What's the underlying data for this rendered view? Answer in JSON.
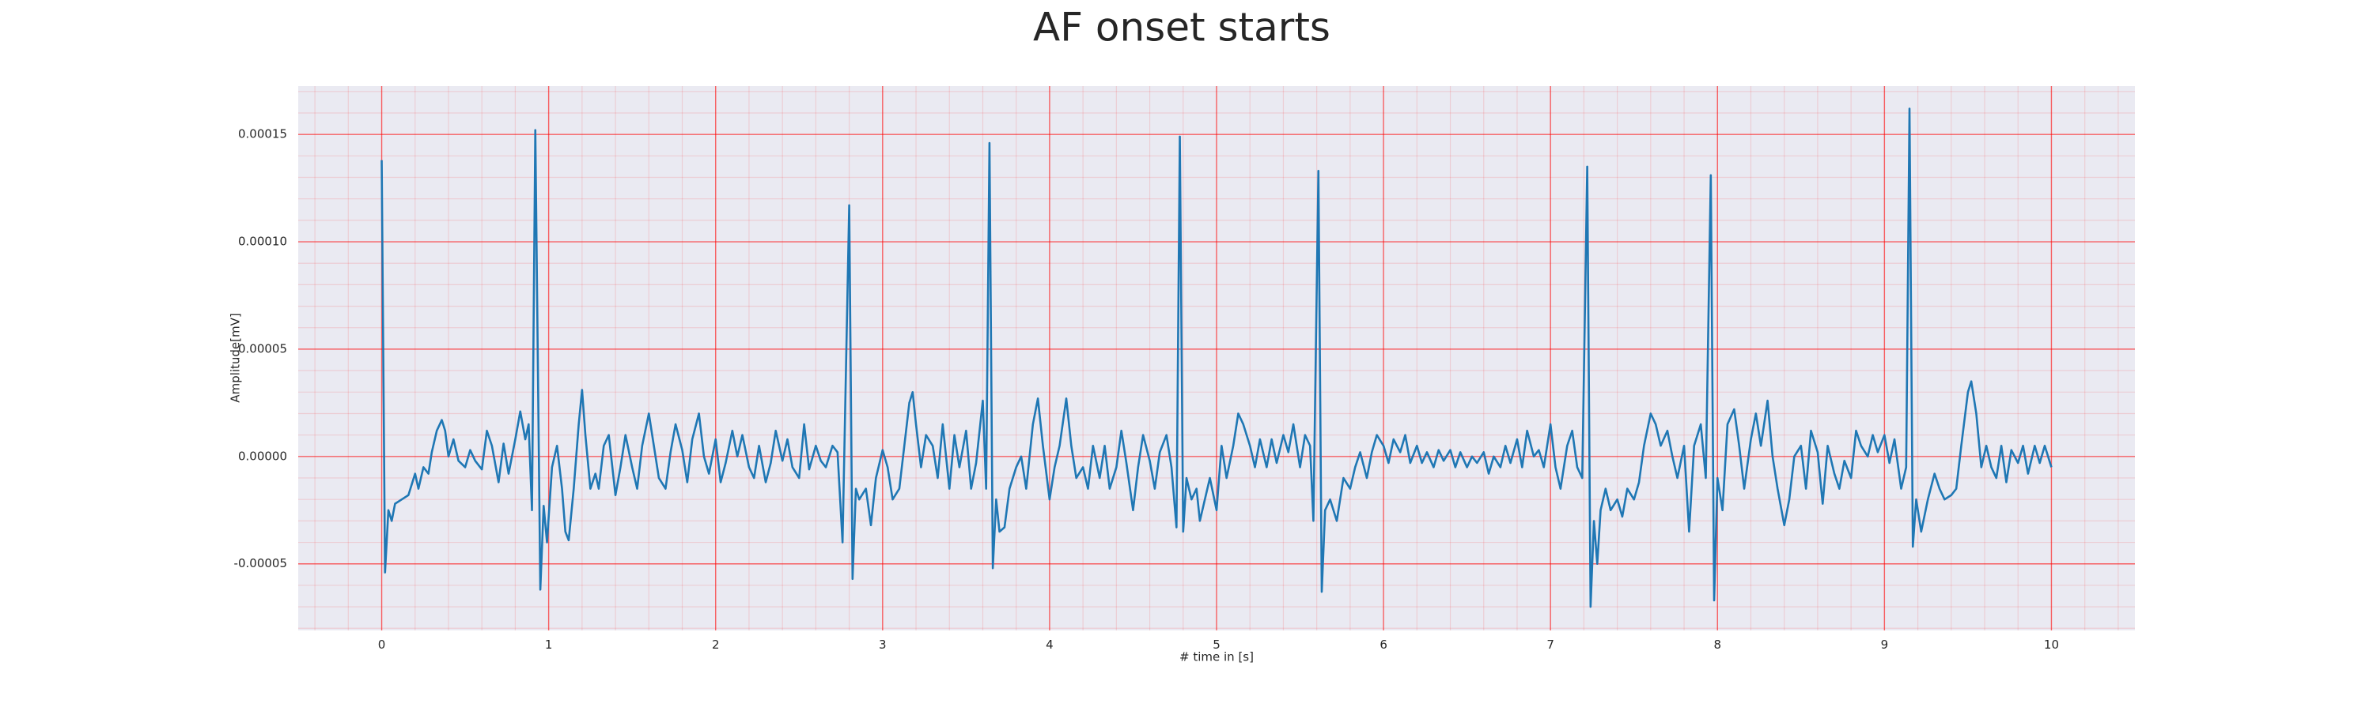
{
  "chart_data": {
    "type": "line",
    "title": "AF onset starts",
    "x_label": "# time in [s]",
    "y_label": "Amplitude[mV]",
    "color": "#1f77b4",
    "grid": true,
    "minor_grid": true,
    "grid_color": "#ff0000",
    "xlim": [
      -0.5,
      10.5
    ],
    "ylim": [
      -8.1e-05,
      0.0001725
    ],
    "xticks": [
      0,
      1,
      2,
      3,
      4,
      5,
      6,
      7,
      8,
      9,
      10
    ],
    "yticks": [
      -5e-05,
      {
        "value": 0,
        "label": "0.00000"
      },
      5e-05,
      {
        "value": 0.0001,
        "label": "0.00010"
      },
      0.00015
    ],
    "x": [
      0,
      0.02,
      0.04,
      0.06,
      0.08,
      0.12,
      0.16,
      0.2,
      0.22,
      0.25,
      0.28,
      0.3,
      0.33,
      0.36,
      0.38,
      0.4,
      0.43,
      0.46,
      0.5,
      0.53,
      0.56,
      0.6,
      0.63,
      0.66,
      0.7,
      0.73,
      0.76,
      0.8,
      0.83,
      0.86,
      0.88,
      0.9,
      0.92,
      0.95,
      0.97,
      0.99,
      1.02,
      1.05,
      1.08,
      1.1,
      1.12,
      1.15,
      1.18,
      1.2,
      1.22,
      1.25,
      1.28,
      1.3,
      1.33,
      1.36,
      1.4,
      1.43,
      1.46,
      1.5,
      1.53,
      1.56,
      1.6,
      1.63,
      1.66,
      1.7,
      1.73,
      1.76,
      1.8,
      1.83,
      1.86,
      1.9,
      1.93,
      1.96,
      2.0,
      2.03,
      2.06,
      2.1,
      2.13,
      2.16,
      2.2,
      2.23,
      2.26,
      2.3,
      2.33,
      2.36,
      2.4,
      2.43,
      2.46,
      2.5,
      2.53,
      2.56,
      2.6,
      2.63,
      2.66,
      2.7,
      2.73,
      2.76,
      2.8,
      2.82,
      2.84,
      2.86,
      2.9,
      2.93,
      2.96,
      3.0,
      3.03,
      3.06,
      3.1,
      3.13,
      3.16,
      3.18,
      3.2,
      3.23,
      3.26,
      3.3,
      3.33,
      3.36,
      3.4,
      3.43,
      3.46,
      3.5,
      3.53,
      3.56,
      3.6,
      3.62,
      3.64,
      3.66,
      3.68,
      3.7,
      3.73,
      3.76,
      3.8,
      3.83,
      3.86,
      3.9,
      3.93,
      3.96,
      4.0,
      4.03,
      4.06,
      4.1,
      4.13,
      4.16,
      4.2,
      4.23,
      4.26,
      4.3,
      4.33,
      4.36,
      4.4,
      4.43,
      4.46,
      4.5,
      4.53,
      4.56,
      4.6,
      4.63,
      4.66,
      4.7,
      4.73,
      4.76,
      4.78,
      4.8,
      4.82,
      4.85,
      4.88,
      4.9,
      4.93,
      4.96,
      5.0,
      5.03,
      5.06,
      5.1,
      5.13,
      5.16,
      5.2,
      5.23,
      5.26,
      5.3,
      5.33,
      5.36,
      5.4,
      5.43,
      5.46,
      5.5,
      5.53,
      5.56,
      5.58,
      5.61,
      5.63,
      5.65,
      5.68,
      5.72,
      5.76,
      5.8,
      5.83,
      5.86,
      5.9,
      5.93,
      5.96,
      6.0,
      6.03,
      6.06,
      6.1,
      6.13,
      6.16,
      6.2,
      6.23,
      6.26,
      6.3,
      6.33,
      6.36,
      6.4,
      6.43,
      6.46,
      6.5,
      6.53,
      6.56,
      6.6,
      6.63,
      6.66,
      6.7,
      6.73,
      6.76,
      6.8,
      6.83,
      6.86,
      6.9,
      6.93,
      6.96,
      7.0,
      7.03,
      7.06,
      7.1,
      7.13,
      7.16,
      7.19,
      7.22,
      7.24,
      7.26,
      7.28,
      7.3,
      7.33,
      7.36,
      7.4,
      7.43,
      7.46,
      7.5,
      7.53,
      7.56,
      7.6,
      7.63,
      7.66,
      7.7,
      7.73,
      7.76,
      7.8,
      7.83,
      7.86,
      7.9,
      7.93,
      7.96,
      7.98,
      8.0,
      8.03,
      8.06,
      8.1,
      8.13,
      8.16,
      8.2,
      8.23,
      8.26,
      8.3,
      8.33,
      8.36,
      8.4,
      8.43,
      8.46,
      8.5,
      8.53,
      8.56,
      8.6,
      8.63,
      8.66,
      8.7,
      8.73,
      8.76,
      8.8,
      8.83,
      8.86,
      8.9,
      8.93,
      8.96,
      9.0,
      9.03,
      9.06,
      9.1,
      9.13,
      9.15,
      9.17,
      9.19,
      9.22,
      9.26,
      9.3,
      9.33,
      9.36,
      9.4,
      9.43,
      9.46,
      9.5,
      9.52,
      9.55,
      9.58,
      9.61,
      9.64,
      9.67,
      9.7,
      9.73,
      9.76,
      9.8,
      9.83,
      9.86,
      9.9,
      9.93,
      9.96,
      10.0
    ],
    "values": [
      0.000138,
      -5.4e-05,
      -2.5e-05,
      -3e-05,
      -2.2e-05,
      -2e-05,
      -1.8e-05,
      -8e-06,
      -1.5e-05,
      -5e-06,
      -8e-06,
      2e-06,
      1.2e-05,
      1.7e-05,
      1.2e-05,
      0,
      8e-06,
      -2e-06,
      -5e-06,
      3e-06,
      -2e-06,
      -6e-06,
      1.2e-05,
      5e-06,
      -1.2e-05,
      6e-06,
      -8e-06,
      8e-06,
      2.1e-05,
      8e-06,
      1.5e-05,
      -2.5e-05,
      0.000152,
      -6.2e-05,
      -2.3e-05,
      -4e-05,
      -5e-06,
      5e-06,
      -1.5e-05,
      -3.5e-05,
      -3.9e-05,
      -1.5e-05,
      1.5e-05,
      3.1e-05,
      1e-05,
      -1.5e-05,
      -8e-06,
      -1.5e-05,
      5e-06,
      1e-05,
      -1.8e-05,
      -5e-06,
      1e-05,
      -5e-06,
      -1.5e-05,
      5e-06,
      2e-05,
      5e-06,
      -1e-05,
      -1.5e-05,
      2e-06,
      1.5e-05,
      3e-06,
      -1.2e-05,
      8e-06,
      2e-05,
      0,
      -8e-06,
      8e-06,
      -1.2e-05,
      -3e-06,
      1.2e-05,
      0,
      1e-05,
      -5e-06,
      -1e-05,
      5e-06,
      -1.2e-05,
      -3e-06,
      1.2e-05,
      -2e-06,
      8e-06,
      -5e-06,
      -1e-05,
      1.5e-05,
      -6e-06,
      5e-06,
      -2e-06,
      -5e-06,
      5e-06,
      2e-06,
      -4e-05,
      0.000117,
      -5.7e-05,
      -1.5e-05,
      -2e-05,
      -1.5e-05,
      -3.2e-05,
      -1e-05,
      3e-06,
      -5e-06,
      -2e-05,
      -1.5e-05,
      5e-06,
      2.5e-05,
      3e-05,
      1.5e-05,
      -5e-06,
      1e-05,
      5e-06,
      -1e-05,
      1.5e-05,
      -1.5e-05,
      1e-05,
      -5e-06,
      1.2e-05,
      -1.5e-05,
      -3e-06,
      2.6e-05,
      -1.5e-05,
      0.000146,
      -5.2e-05,
      -2e-05,
      -3.5e-05,
      -3.3e-05,
      -1.5e-05,
      -5e-06,
      0,
      -1.5e-05,
      1.5e-05,
      2.7e-05,
      5e-06,
      -2e-05,
      -5e-06,
      5e-06,
      2.7e-05,
      5e-06,
      -1e-05,
      -5e-06,
      -1.5e-05,
      5e-06,
      -1e-05,
      5e-06,
      -1.5e-05,
      -5e-06,
      1.2e-05,
      -3e-06,
      -2.5e-05,
      -5e-06,
      1e-05,
      -2e-06,
      -1.5e-05,
      2e-06,
      1e-05,
      -5e-06,
      -3.3e-05,
      0.000149,
      -3.5e-05,
      -1e-05,
      -2e-05,
      -1.5e-05,
      -3e-05,
      -2e-05,
      -1e-05,
      -2.5e-05,
      5e-06,
      -1e-05,
      5e-06,
      2e-05,
      1.5e-05,
      5e-06,
      -5e-06,
      8e-06,
      -5e-06,
      8e-06,
      -3e-06,
      1e-05,
      2e-06,
      1.5e-05,
      -5e-06,
      1e-05,
      5e-06,
      -3e-05,
      0.000133,
      -6.3e-05,
      -2.5e-05,
      -2e-05,
      -3e-05,
      -1e-05,
      -1.5e-05,
      -5e-06,
      2e-06,
      -1e-05,
      2e-06,
      1e-05,
      5e-06,
      -3e-06,
      8e-06,
      2e-06,
      1e-05,
      -3e-06,
      5e-06,
      -3e-06,
      2e-06,
      -5e-06,
      3e-06,
      -2e-06,
      3e-06,
      -5e-06,
      2e-06,
      -5e-06,
      0,
      -3e-06,
      2e-06,
      -8e-06,
      0,
      -5e-06,
      5e-06,
      -3e-06,
      8e-06,
      -5e-06,
      1.2e-05,
      0,
      3e-06,
      -5e-06,
      1.5e-05,
      -5e-06,
      -1.5e-05,
      5e-06,
      1.2e-05,
      -5e-06,
      -1e-05,
      0.000135,
      -7e-05,
      -3e-05,
      -5e-05,
      -2.5e-05,
      -1.5e-05,
      -2.5e-05,
      -2e-05,
      -2.8e-05,
      -1.5e-05,
      -2e-05,
      -1.2e-05,
      5e-06,
      2e-05,
      1.5e-05,
      5e-06,
      1.2e-05,
      0,
      -1e-05,
      5e-06,
      -3.5e-05,
      5e-06,
      1.5e-05,
      -1e-05,
      0.000131,
      -6.7e-05,
      -1e-05,
      -2.5e-05,
      1.5e-05,
      2.2e-05,
      5e-06,
      -1.5e-05,
      8e-06,
      2e-05,
      5e-06,
      2.6e-05,
      0,
      -1.5e-05,
      -3.2e-05,
      -2e-05,
      0,
      5e-06,
      -1.5e-05,
      1.2e-05,
      2e-06,
      -2.2e-05,
      5e-06,
      -8e-06,
      -1.5e-05,
      -2e-06,
      -1e-05,
      1.2e-05,
      5e-06,
      0,
      1e-05,
      2e-06,
      1e-05,
      -3e-06,
      8e-06,
      -1.5e-05,
      -5e-06,
      0.000162,
      -4.2e-05,
      -2e-05,
      -3.5e-05,
      -2e-05,
      -8e-06,
      -1.5e-05,
      -2e-05,
      -1.8e-05,
      -1.5e-05,
      5e-06,
      3e-05,
      3.5e-05,
      2e-05,
      -5e-06,
      5e-06,
      -5e-06,
      -1e-05,
      5e-06,
      -1.2e-05,
      3e-06,
      -3e-06,
      5e-06,
      -8e-06,
      5e-06,
      -3e-06,
      5e-06,
      -5e-06
    ]
  }
}
